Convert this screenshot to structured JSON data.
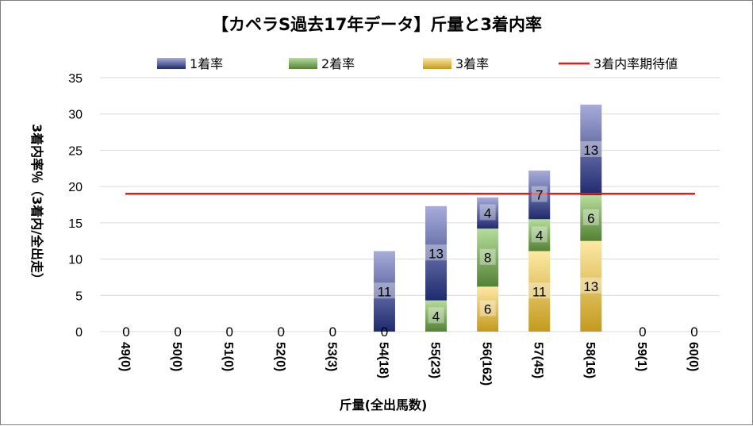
{
  "chart_data": {
    "type": "bar",
    "stacked": true,
    "title": "【カペラS過去17年データ】斤量と3着内率",
    "xlabel": "斤量(全出馬数)",
    "ylabel": "3着内率％（3着内/全出走）",
    "ylim": [
      0,
      35
    ],
    "yticks": [
      0,
      5,
      10,
      15,
      20,
      25,
      30,
      35
    ],
    "grid": true,
    "legend_position": "top",
    "categories": [
      "49(0)",
      "50(0)",
      "51(0)",
      "52(0)",
      "53(3)",
      "54(18)",
      "55(23)",
      "56(162)",
      "57(45)",
      "58(16)",
      "59(1)",
      "60(0)"
    ],
    "series": [
      {
        "name": "3着率",
        "values": [
          0,
          0,
          0,
          0,
          0,
          0,
          0,
          6.2,
          11.1,
          12.5,
          0,
          0
        ],
        "labels": [
          "",
          "",
          "",
          "",
          "",
          "",
          "",
          "6",
          "11",
          "13",
          "",
          ""
        ],
        "color_dark": "#c49a1e",
        "color_light": "#fde9a4"
      },
      {
        "name": "2着率",
        "values": [
          0,
          0,
          0,
          0,
          0,
          0,
          4.3,
          8.0,
          4.4,
          6.3,
          0,
          0
        ],
        "labels": [
          "",
          "",
          "",
          "",
          "",
          "0",
          "4",
          "8",
          "4",
          "6",
          "",
          ""
        ],
        "color_dark": "#538135",
        "color_light": "#b7dc9b"
      },
      {
        "name": "1着率",
        "values": [
          0,
          0,
          0,
          0,
          0,
          11.1,
          13.0,
          4.3,
          6.7,
          12.5,
          0,
          0
        ],
        "labels": [
          "0",
          "0",
          "0",
          "0",
          "0",
          "11",
          "13",
          "4",
          "7",
          "13",
          "0",
          "0"
        ],
        "color_dark": "#1f2a6e",
        "color_light": "#a7acd9"
      }
    ],
    "reference_line": {
      "name": "3着内率期待値",
      "value": 19,
      "color": "#e01b1b"
    }
  }
}
